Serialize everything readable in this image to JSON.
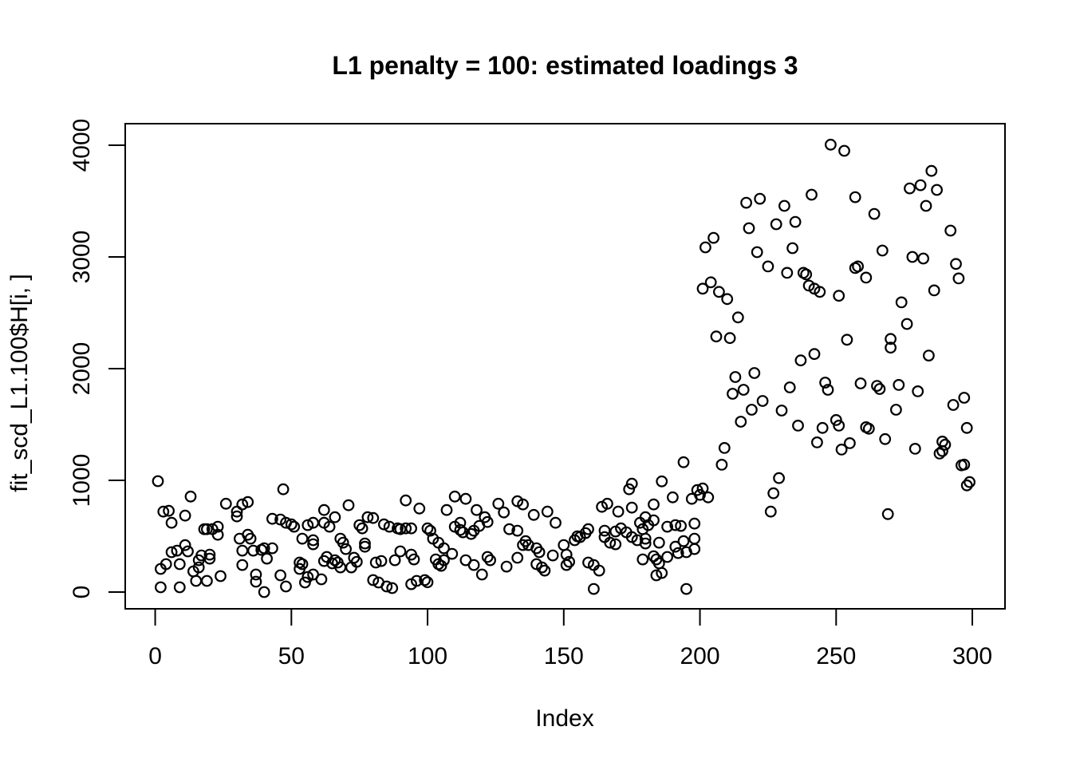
{
  "title": "L1 penalty = 100: estimated loadings 3",
  "chart_data": {
    "type": "scatter",
    "title": "L1 penalty = 100: estimated loadings 3",
    "xlabel": "Index",
    "ylabel": "fit_scd_L1.100$H[i, ]",
    "xlim": [
      -11,
      312
    ],
    "ylim": [
      -150,
      4193
    ],
    "xticks": [
      0,
      50,
      100,
      150,
      200,
      250,
      300
    ],
    "yticks": [
      0,
      1000,
      2000,
      3000,
      4000
    ],
    "grid": false,
    "legend": "none",
    "point_style": {
      "shape": "open-circle",
      "color": "#000000"
    },
    "points": [
      [
        1,
        993
      ],
      [
        2,
        207
      ],
      [
        2,
        43
      ],
      [
        3,
        720
      ],
      [
        4,
        250
      ],
      [
        5,
        727
      ],
      [
        6,
        620
      ],
      [
        6,
        357
      ],
      [
        8,
        371
      ],
      [
        9,
        250
      ],
      [
        9,
        43
      ],
      [
        11,
        684
      ],
      [
        11,
        420
      ],
      [
        12,
        364
      ],
      [
        13,
        855
      ],
      [
        14,
        185
      ],
      [
        15,
        100
      ],
      [
        16,
        285
      ],
      [
        16,
        221
      ],
      [
        17,
        328
      ],
      [
        18,
        563
      ],
      [
        19,
        563
      ],
      [
        19,
        100
      ],
      [
        20,
        299
      ],
      [
        20,
        335
      ],
      [
        21,
        563
      ],
      [
        23,
        585
      ],
      [
        23,
        513
      ],
      [
        24,
        143
      ],
      [
        26,
        791
      ],
      [
        30,
        720
      ],
      [
        30,
        677
      ],
      [
        31,
        478
      ],
      [
        32,
        784
      ],
      [
        32,
        371
      ],
      [
        32,
        242
      ],
      [
        34,
        806
      ],
      [
        34,
        513
      ],
      [
        35,
        478
      ],
      [
        36,
        371
      ],
      [
        37,
        157
      ],
      [
        37,
        93
      ],
      [
        39,
        378
      ],
      [
        40,
        392
      ],
      [
        40,
        0
      ],
      [
        41,
        299
      ],
      [
        43,
        656
      ],
      [
        43,
        392
      ],
      [
        46,
        649
      ],
      [
        46,
        150
      ],
      [
        47,
        920
      ],
      [
        48,
        620
      ],
      [
        48,
        50
      ],
      [
        50,
        606
      ],
      [
        51,
        585
      ],
      [
        53,
        264
      ],
      [
        53,
        207
      ],
      [
        54,
        478
      ],
      [
        54,
        250
      ],
      [
        55,
        86
      ],
      [
        56,
        599
      ],
      [
        56,
        135
      ],
      [
        58,
        620
      ],
      [
        58,
        464
      ],
      [
        58,
        428
      ],
      [
        58,
        157
      ],
      [
        61,
        114
      ],
      [
        62,
        734
      ],
      [
        62,
        620
      ],
      [
        62,
        278
      ],
      [
        63,
        314
      ],
      [
        64,
        585
      ],
      [
        65,
        257
      ],
      [
        66,
        670
      ],
      [
        66,
        285
      ],
      [
        67,
        264
      ],
      [
        68,
        478
      ],
      [
        68,
        221
      ],
      [
        69,
        442
      ],
      [
        70,
        385
      ],
      [
        71,
        777
      ],
      [
        72,
        221
      ],
      [
        73,
        307
      ],
      [
        74,
        271
      ],
      [
        75,
        599
      ],
      [
        76,
        570
      ],
      [
        77,
        435
      ],
      [
        77,
        406
      ],
      [
        78,
        670
      ],
      [
        80,
        663
      ],
      [
        80,
        107
      ],
      [
        81,
        264
      ],
      [
        82,
        86
      ],
      [
        83,
        278
      ],
      [
        84,
        606
      ],
      [
        85,
        50
      ],
      [
        86,
        585
      ],
      [
        87,
        36
      ],
      [
        88,
        285
      ],
      [
        89,
        570
      ],
      [
        90,
        563
      ],
      [
        90,
        364
      ],
      [
        92,
        820
      ],
      [
        92,
        570
      ],
      [
        94,
        570
      ],
      [
        94,
        335
      ],
      [
        94,
        71
      ],
      [
        95,
        292
      ],
      [
        96,
        100
      ],
      [
        97,
        748
      ],
      [
        99,
        107
      ],
      [
        100,
        570
      ],
      [
        100,
        88
      ],
      [
        101,
        549
      ],
      [
        102,
        478
      ],
      [
        103,
        292
      ],
      [
        104,
        442
      ],
      [
        104,
        250
      ],
      [
        105,
        235
      ],
      [
        106,
        392
      ],
      [
        106,
        285
      ],
      [
        107,
        734
      ],
      [
        109,
        342
      ],
      [
        110,
        855
      ],
      [
        110,
        585
      ],
      [
        112,
        620
      ],
      [
        112,
        556
      ],
      [
        113,
        535
      ],
      [
        114,
        834
      ],
      [
        114,
        285
      ],
      [
        116,
        520
      ],
      [
        117,
        549
      ],
      [
        117,
        242
      ],
      [
        118,
        734
      ],
      [
        119,
        592
      ],
      [
        120,
        157
      ],
      [
        121,
        670
      ],
      [
        122,
        627
      ],
      [
        122,
        314
      ],
      [
        123,
        285
      ],
      [
        126,
        791
      ],
      [
        128,
        713
      ],
      [
        129,
        228
      ],
      [
        130,
        563
      ],
      [
        133,
        813
      ],
      [
        133,
        549
      ],
      [
        133,
        307
      ],
      [
        135,
        784
      ],
      [
        135,
        421
      ],
      [
        136,
        456
      ],
      [
        137,
        421
      ],
      [
        139,
        691
      ],
      [
        140,
        392
      ],
      [
        140,
        250
      ],
      [
        141,
        357
      ],
      [
        142,
        221
      ],
      [
        143,
        192
      ],
      [
        144,
        720
      ],
      [
        146,
        328
      ],
      [
        147,
        620
      ],
      [
        150,
        421
      ],
      [
        151,
        335
      ],
      [
        151,
        242
      ],
      [
        152,
        271
      ],
      [
        154,
        464
      ],
      [
        155,
        499
      ],
      [
        156,
        492
      ],
      [
        158,
        528
      ],
      [
        159,
        563
      ],
      [
        159,
        264
      ],
      [
        161,
        242
      ],
      [
        161,
        28
      ],
      [
        163,
        192
      ],
      [
        164,
        763
      ],
      [
        165,
        549
      ],
      [
        165,
        492
      ],
      [
        166,
        791
      ],
      [
        167,
        442
      ],
      [
        169,
        542
      ],
      [
        169,
        428
      ],
      [
        170,
        720
      ],
      [
        171,
        570
      ],
      [
        173,
        535
      ],
      [
        174,
        920
      ],
      [
        175,
        970
      ],
      [
        175,
        756
      ],
      [
        175,
        492
      ],
      [
        177,
        464
      ],
      [
        178,
        620
      ],
      [
        179,
        563
      ],
      [
        179,
        292
      ],
      [
        180,
        670
      ],
      [
        180,
        478
      ],
      [
        180,
        435
      ],
      [
        181,
        599
      ],
      [
        183,
        784
      ],
      [
        183,
        642
      ],
      [
        183,
        321
      ],
      [
        184,
        292
      ],
      [
        184,
        150
      ],
      [
        185,
        442
      ],
      [
        185,
        257
      ],
      [
        186,
        991
      ],
      [
        186,
        171
      ],
      [
        188,
        585
      ],
      [
        188,
        314
      ],
      [
        190,
        848
      ],
      [
        191,
        599
      ],
      [
        191,
        406
      ],
      [
        192,
        349
      ],
      [
        193,
        592
      ],
      [
        194,
        1162
      ],
      [
        194,
        456
      ],
      [
        195,
        357
      ],
      [
        195,
        28
      ],
      [
        197,
        834
      ],
      [
        198,
        613
      ],
      [
        198,
        478
      ],
      [
        198,
        385
      ],
      [
        199,
        913
      ],
      [
        200,
        870
      ],
      [
        201,
        927
      ],
      [
        201,
        2716
      ],
      [
        202,
        3086
      ],
      [
        203,
        848
      ],
      [
        204,
        2773
      ],
      [
        205,
        3171
      ],
      [
        206,
        2288
      ],
      [
        207,
        2687
      ],
      [
        208,
        1140
      ],
      [
        209,
        1290
      ],
      [
        210,
        2623
      ],
      [
        211,
        2274
      ],
      [
        212,
        1775
      ],
      [
        213,
        1925
      ],
      [
        214,
        2459
      ],
      [
        215,
        1525
      ],
      [
        216,
        1811
      ],
      [
        217,
        3485
      ],
      [
        218,
        3257
      ],
      [
        219,
        1632
      ],
      [
        220,
        1961
      ],
      [
        221,
        3043
      ],
      [
        222,
        3521
      ],
      [
        223,
        1711
      ],
      [
        225,
        2915
      ],
      [
        226,
        720
      ],
      [
        227,
        884
      ],
      [
        228,
        3293
      ],
      [
        229,
        1020
      ],
      [
        230,
        1625
      ],
      [
        231,
        3457
      ],
      [
        232,
        2858
      ],
      [
        233,
        1832
      ],
      [
        234,
        3079
      ],
      [
        235,
        3314
      ],
      [
        236,
        1490
      ],
      [
        237,
        2074
      ],
      [
        238,
        2858
      ],
      [
        239,
        2844
      ],
      [
        240,
        2744
      ],
      [
        241,
        3557
      ],
      [
        242,
        2716
      ],
      [
        242,
        2131
      ],
      [
        243,
        1340
      ],
      [
        244,
        2687
      ],
      [
        245,
        1469
      ],
      [
        246,
        1875
      ],
      [
        247,
        1811
      ],
      [
        248,
        4005
      ],
      [
        250,
        1540
      ],
      [
        251,
        2652
      ],
      [
        251,
        1490
      ],
      [
        252,
        1276
      ],
      [
        253,
        3950
      ],
      [
        254,
        2259
      ],
      [
        255,
        1333
      ],
      [
        257,
        3535
      ],
      [
        257,
        2901
      ],
      [
        258,
        2915
      ],
      [
        259,
        1868
      ],
      [
        261,
        2815
      ],
      [
        261,
        1476
      ],
      [
        262,
        1462
      ],
      [
        264,
        3385
      ],
      [
        265,
        1846
      ],
      [
        266,
        1818
      ],
      [
        267,
        3057
      ],
      [
        268,
        1369
      ],
      [
        269,
        698
      ],
      [
        270,
        2266
      ],
      [
        270,
        2188
      ],
      [
        272,
        1632
      ],
      [
        273,
        1854
      ],
      [
        274,
        2594
      ],
      [
        276,
        2400
      ],
      [
        277,
        3614
      ],
      [
        278,
        3000
      ],
      [
        279,
        1283
      ],
      [
        280,
        1797
      ],
      [
        281,
        3642
      ],
      [
        282,
        2986
      ],
      [
        283,
        3457
      ],
      [
        284,
        2117
      ],
      [
        285,
        3770
      ],
      [
        286,
        2701
      ],
      [
        287,
        3600
      ],
      [
        288,
        1240
      ],
      [
        289,
        1347
      ],
      [
        289,
        1262
      ],
      [
        290,
        1319
      ],
      [
        292,
        3236
      ],
      [
        293,
        1675
      ],
      [
        294,
        2937
      ],
      [
        295,
        2808
      ],
      [
        296,
        1134
      ],
      [
        297,
        1739
      ],
      [
        297,
        1141
      ],
      [
        298,
        1469
      ],
      [
        298,
        955
      ],
      [
        299,
        984
      ]
    ]
  }
}
